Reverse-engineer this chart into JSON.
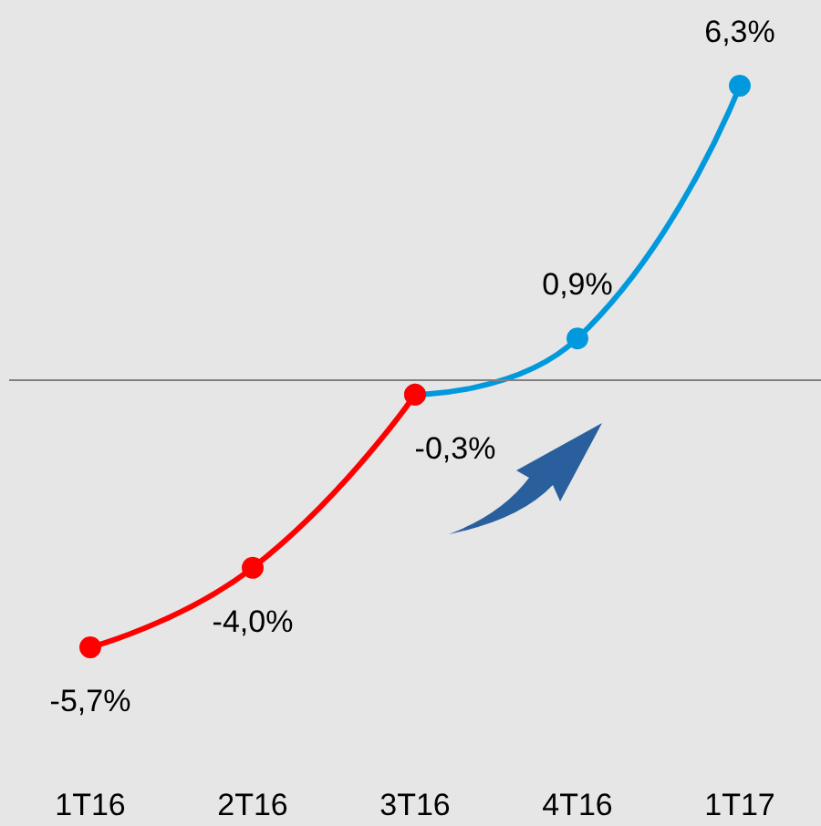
{
  "chart_data": {
    "type": "line",
    "categories": [
      "1T16",
      "2T16",
      "3T16",
      "4T16",
      "1T17"
    ],
    "series": [
      {
        "color": "#ff0000",
        "values": [
          -5.7,
          -4.0,
          -0.3,
          null,
          null
        ],
        "value_labels": [
          "-5,7%",
          "-4,0%",
          "-0,3%",
          null,
          null
        ]
      },
      {
        "color": "#0099dd",
        "values": [
          null,
          null,
          -0.3,
          0.9,
          6.3
        ],
        "value_labels": [
          null,
          null,
          null,
          "0,9%",
          "6,3%"
        ]
      }
    ],
    "ref_lines": [
      {
        "axis": "y",
        "value": 0,
        "color": "#808080"
      }
    ],
    "marker": "circle",
    "line_style": "solid",
    "grid": false
  }
}
